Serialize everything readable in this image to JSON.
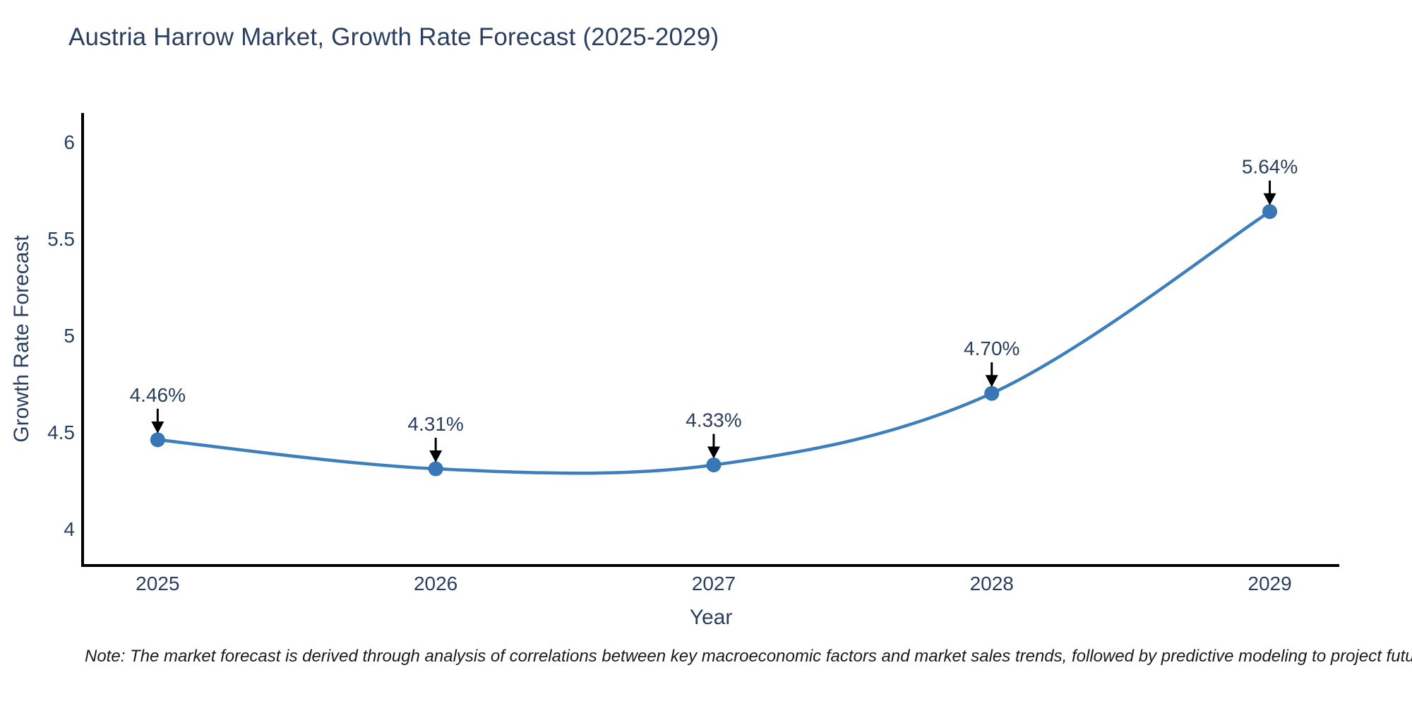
{
  "figure": {
    "background": "#ffffff",
    "note": "Note: The market forecast is derived through analysis of correlations between key macroeconomic factors and market sales trends, followed by predictive modeling to project future sales"
  },
  "chart_data": {
    "type": "line",
    "title": "Austria Harrow Market, Growth Rate Forecast (2025-2029)",
    "xlabel": "Year",
    "ylabel": "Growth Rate Forecast",
    "x": [
      2025,
      2026,
      2027,
      2028,
      2029
    ],
    "series": [
      {
        "name": "Growth Rate Forecast",
        "values": [
          4.46,
          4.31,
          4.33,
          4.7,
          5.64
        ]
      }
    ],
    "point_labels": [
      "4.46%",
      "4.31%",
      "4.33%",
      "4.70%",
      "5.64%"
    ],
    "xtick_labels": [
      "2025",
      "2026",
      "2027",
      "2028",
      "2029"
    ],
    "ytick_labels": [
      "4",
      "4.5",
      "5",
      "5.5",
      "6"
    ],
    "ytick_values": [
      4,
      4.5,
      5,
      5.5,
      6
    ],
    "xlim": [
      2024.73,
      2029.25
    ],
    "ylim": [
      3.81,
      6.15
    ],
    "grid": false,
    "legend": "none",
    "line_shape": "spline",
    "colors": {
      "line": "#3d7ebd",
      "marker": "#3876b5",
      "axis_line": "#000000",
      "text": "#2a3f5f",
      "annotation_text": "#2a3f5f",
      "annotation_arrow": "#000000",
      "note_text": "#1a1a1a"
    }
  }
}
